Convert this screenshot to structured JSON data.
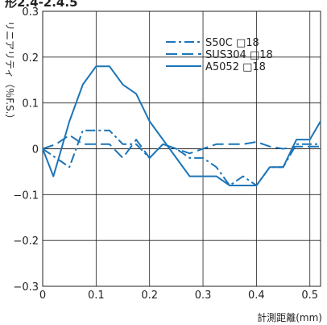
{
  "page_heading": "形2.4-2.4.5",
  "chart_data": {
    "type": "line",
    "title": "",
    "xlabel": "計測距離(mm)",
    "ylabel": "リニアリティ（％F.S.）",
    "xlim": [
      0,
      0.52
    ],
    "ylim": [
      -0.3,
      0.3
    ],
    "x_ticks": [
      "0",
      "0.1",
      "0.2",
      "0.3",
      "0.4",
      "0.5"
    ],
    "x_tick_values": [
      0,
      0.1,
      0.2,
      0.3,
      0.4,
      0.5
    ],
    "y_ticks": [
      "0.3",
      "0.2",
      "0.1",
      "0",
      "−0.1",
      "−0.2",
      "−0.3"
    ],
    "y_tick_values": [
      0.3,
      0.2,
      0.1,
      0,
      -0.1,
      -0.2,
      -0.3
    ],
    "grid": true,
    "legend_position": "top-right",
    "line_color": "#1c75b8",
    "series": [
      {
        "name": "S50C □18",
        "style": "dashdot",
        "x": [
          0,
          0.025,
          0.05,
          0.075,
          0.1,
          0.125,
          0.15,
          0.175,
          0.2,
          0.225,
          0.25,
          0.275,
          0.3,
          0.325,
          0.35,
          0.375,
          0.4,
          0.425,
          0.45,
          0.475,
          0.5,
          0.52
        ],
        "y": [
          0,
          -0.02,
          -0.04,
          0.04,
          0.04,
          0.04,
          0.01,
          0.01,
          -0.02,
          0.01,
          0,
          -0.02,
          -0.02,
          -0.04,
          -0.08,
          -0.06,
          -0.08,
          -0.04,
          -0.04,
          0.01,
          0.01,
          0.01
        ]
      },
      {
        "name": "SUS304 □18",
        "style": "dash",
        "x": [
          0,
          0.025,
          0.05,
          0.075,
          0.1,
          0.125,
          0.15,
          0.175,
          0.2,
          0.225,
          0.25,
          0.275,
          0.3,
          0.325,
          0.35,
          0.375,
          0.4,
          0.425,
          0.45,
          0.475,
          0.5,
          0.52
        ],
        "y": [
          0,
          0.01,
          0.03,
          0.01,
          0.01,
          0.01,
          -0.02,
          0.02,
          -0.02,
          0.01,
          0,
          -0.01,
          0,
          0.01,
          0.01,
          0.01,
          0.015,
          0.005,
          0,
          0.005,
          0.005,
          0.005
        ]
      },
      {
        "name": "A5052 □18",
        "style": "solid",
        "x": [
          0,
          0.02,
          0.05,
          0.075,
          0.1,
          0.125,
          0.15,
          0.175,
          0.2,
          0.225,
          0.25,
          0.275,
          0.3,
          0.325,
          0.35,
          0.375,
          0.4,
          0.425,
          0.45,
          0.475,
          0.5,
          0.52
        ],
        "y": [
          0,
          -0.06,
          0.06,
          0.14,
          0.18,
          0.18,
          0.14,
          0.12,
          0.06,
          0.02,
          -0.02,
          -0.06,
          -0.06,
          -0.06,
          -0.08,
          -0.08,
          -0.08,
          -0.04,
          -0.04,
          0.02,
          0.02,
          0.06
        ]
      }
    ]
  }
}
